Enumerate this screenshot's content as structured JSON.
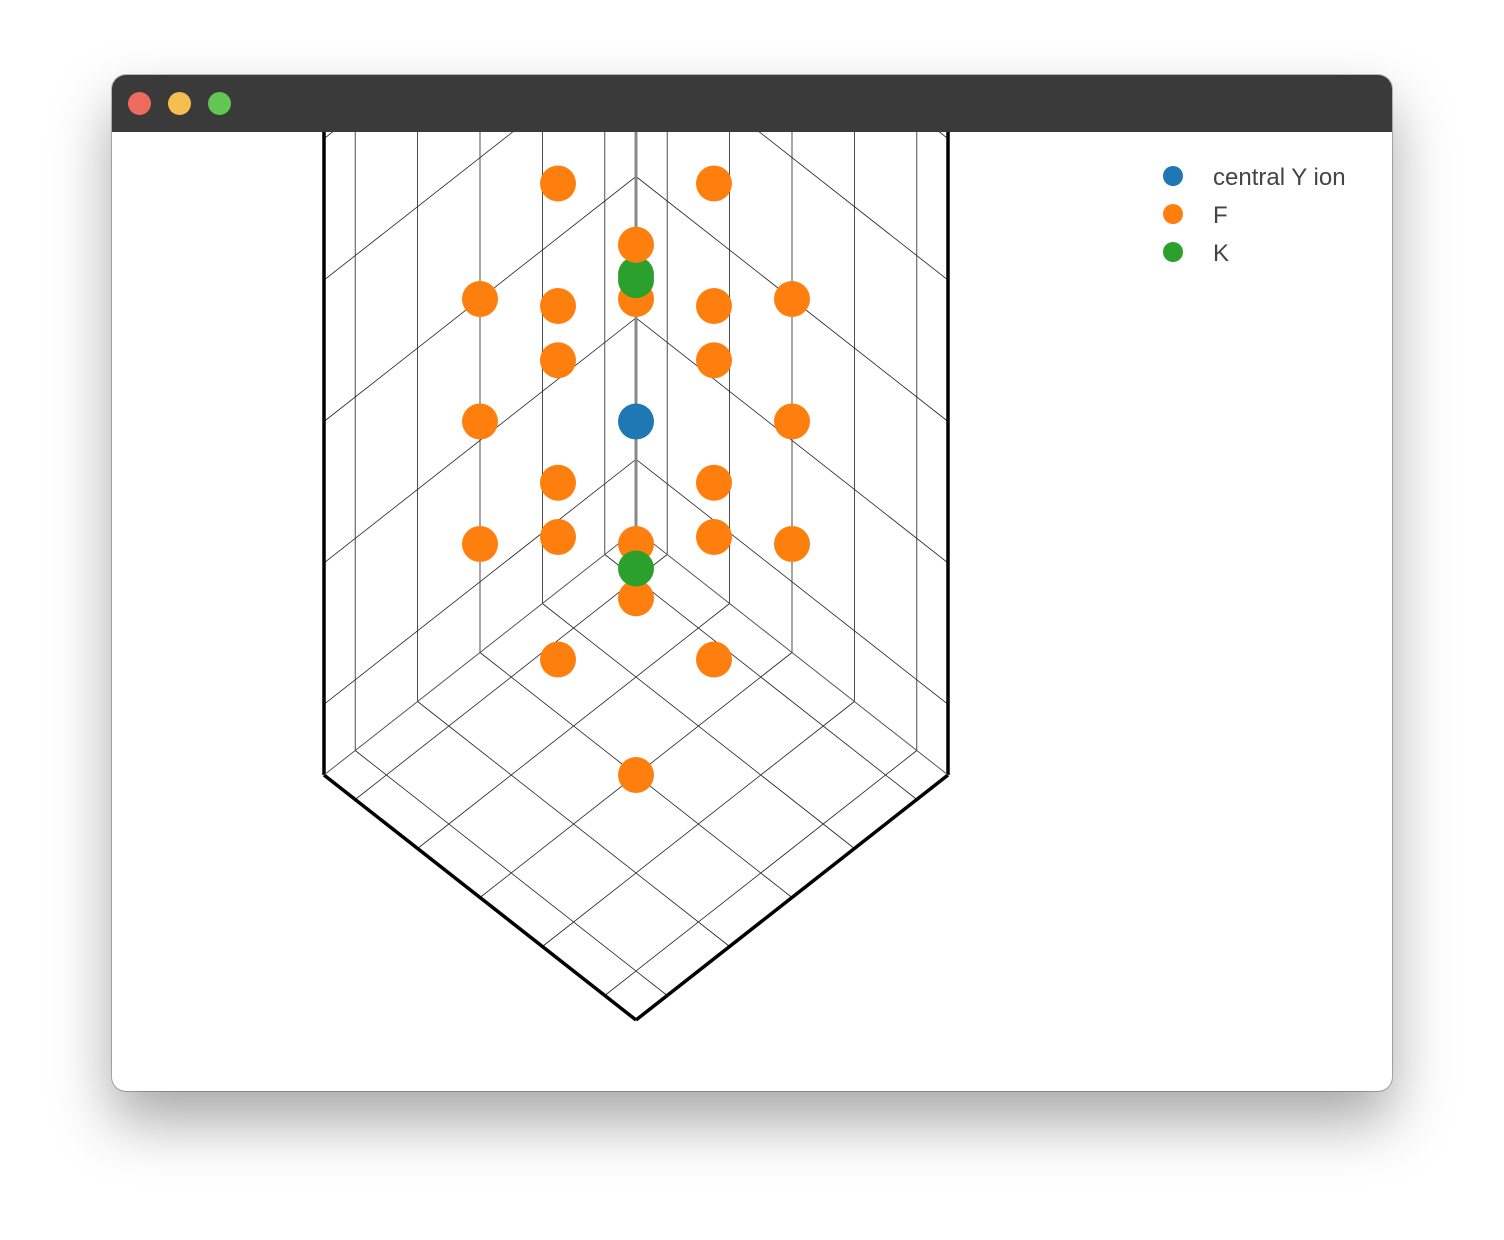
{
  "window": {
    "controls": [
      {
        "name": "close",
        "color": "#ed6a5e"
      },
      {
        "name": "minimize",
        "color": "#f5bf4f"
      },
      {
        "name": "maximize",
        "color": "#62c554"
      }
    ]
  },
  "chart_data": {
    "type": "scatter3d",
    "title": "",
    "grid": true,
    "legend_position": "top-right",
    "xlim": [
      -2,
      2
    ],
    "ylim": [
      -2,
      2
    ],
    "zlim": [
      -2,
      2
    ],
    "series": [
      {
        "name": "central Y ion",
        "color": "#1f77b4",
        "points": [
          [
            0,
            0,
            0
          ]
        ]
      },
      {
        "name": "F",
        "color": "#ff7f0e",
        "points": [
          [
            0,
            0,
            2
          ],
          [
            0,
            0,
            1
          ],
          [
            0,
            0,
            -1
          ],
          [
            0,
            0,
            -2
          ],
          [
            2,
            0,
            0
          ],
          [
            1,
            0,
            0
          ],
          [
            -1,
            0,
            0
          ],
          [
            -2,
            0,
            0
          ],
          [
            0,
            2,
            0
          ],
          [
            0,
            1,
            0
          ],
          [
            0,
            -1,
            0
          ],
          [
            0,
            -2,
            0
          ],
          [
            1,
            1,
            0
          ],
          [
            1,
            -1,
            0
          ],
          [
            -1,
            1,
            0
          ],
          [
            -1,
            -1,
            0
          ],
          [
            1,
            0,
            1
          ],
          [
            1,
            0,
            -1
          ],
          [
            -1,
            0,
            1
          ],
          [
            -1,
            0,
            -1
          ],
          [
            0,
            1,
            1
          ],
          [
            0,
            1,
            -1
          ],
          [
            0,
            -1,
            1
          ],
          [
            0,
            -1,
            -1
          ]
        ]
      },
      {
        "name": "K",
        "color": "#2ca02c",
        "points": [
          [
            0,
            0,
            0.8
          ],
          [
            1.2,
            1.2,
            0
          ],
          [
            -1.2,
            -1.2,
            0
          ]
        ]
      }
    ]
  }
}
